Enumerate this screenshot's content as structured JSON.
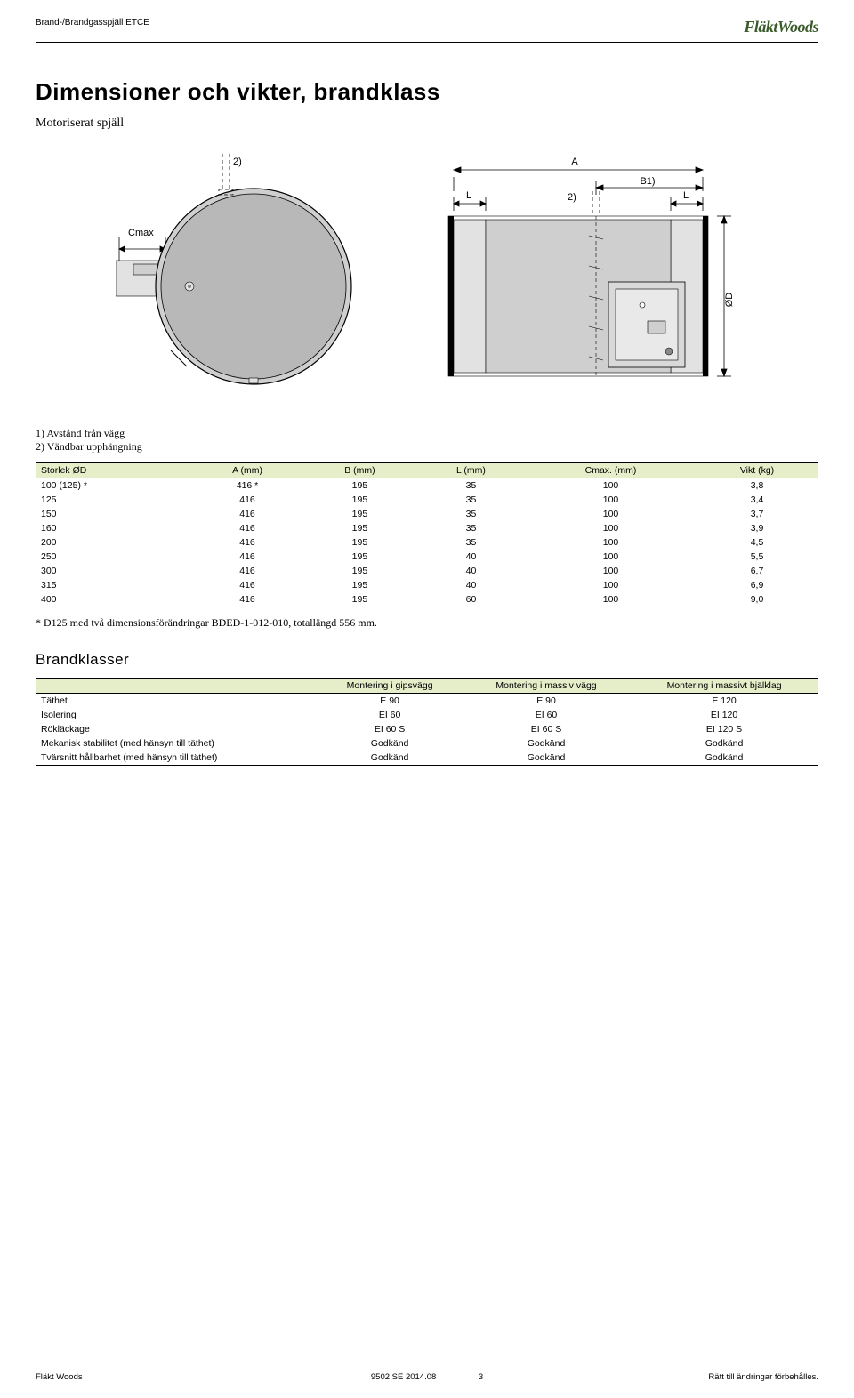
{
  "header": {
    "product_line": "Brand-/Brandgasspjäll ETCE",
    "logo_text": "FläktWoods"
  },
  "title": "Dimensioner och vikter, brandklass",
  "subtitle": "Motoriserat spjäll",
  "drawing_labels": {
    "A": "A",
    "B": "B1)",
    "L": "L",
    "Cmax": "Cmax",
    "OD": "ØD",
    "note2": "2)"
  },
  "notes": {
    "n1": "1) Avstånd från vägg",
    "n2": "2) Vändbar upphängning"
  },
  "table1": {
    "columns": [
      "Storlek ØD",
      "A (mm)",
      "B (mm)",
      "L (mm)",
      "Cmax. (mm)",
      "Vikt (kg)"
    ],
    "rows": [
      [
        "100 (125) *",
        "416 *",
        "195",
        "35",
        "100",
        "3,8"
      ],
      [
        "125",
        "416",
        "195",
        "35",
        "100",
        "3,4"
      ],
      [
        "150",
        "416",
        "195",
        "35",
        "100",
        "3,7"
      ],
      [
        "160",
        "416",
        "195",
        "35",
        "100",
        "3,9"
      ],
      [
        "200",
        "416",
        "195",
        "35",
        "100",
        "4,5"
      ],
      [
        "250",
        "416",
        "195",
        "40",
        "100",
        "5,5"
      ],
      [
        "300",
        "416",
        "195",
        "40",
        "100",
        "6,7"
      ],
      [
        "315",
        "416",
        "195",
        "40",
        "100",
        "6,9"
      ],
      [
        "400",
        "416",
        "195",
        "60",
        "100",
        "9,0"
      ]
    ]
  },
  "table1_footnote": "* D125 med två dimensionsförändringar BDED-1-012-010, totallängd 556 mm.",
  "brand_title": "Brandklasser",
  "table2": {
    "columns": [
      "",
      "Montering i gipsvägg",
      "Montering i massiv vägg",
      "Montering i massivt bjälklag"
    ],
    "rows": [
      [
        "Täthet",
        "E 90",
        "E 90",
        "E 120"
      ],
      [
        "Isolering",
        "EI 60",
        "EI 60",
        "EI 120"
      ],
      [
        "Rökläckage",
        "EI 60 S",
        "EI 60 S",
        "EI 120 S"
      ],
      [
        "Mekanisk stabilitet (med hänsyn till täthet)",
        "Godkänd",
        "Godkänd",
        "Godkänd"
      ],
      [
        "Tvärsnitt hållbarhet (med hänsyn till täthet)",
        "Godkänd",
        "Godkänd",
        "Godkänd"
      ]
    ]
  },
  "footer": {
    "left": "Fläkt Woods",
    "center_doc": "9502 SE 2014.08",
    "center_page": "3",
    "right": "Rätt till ändringar förbehålles."
  },
  "colors": {
    "header_bg": "#e5edc9",
    "logo_color": "#3a5a2a",
    "gray_fill": "#cfcfcf",
    "gray_light": "#e2e2e2",
    "gray_dark": "#b8b8b8",
    "blade_fill": "#d9d9d9"
  }
}
